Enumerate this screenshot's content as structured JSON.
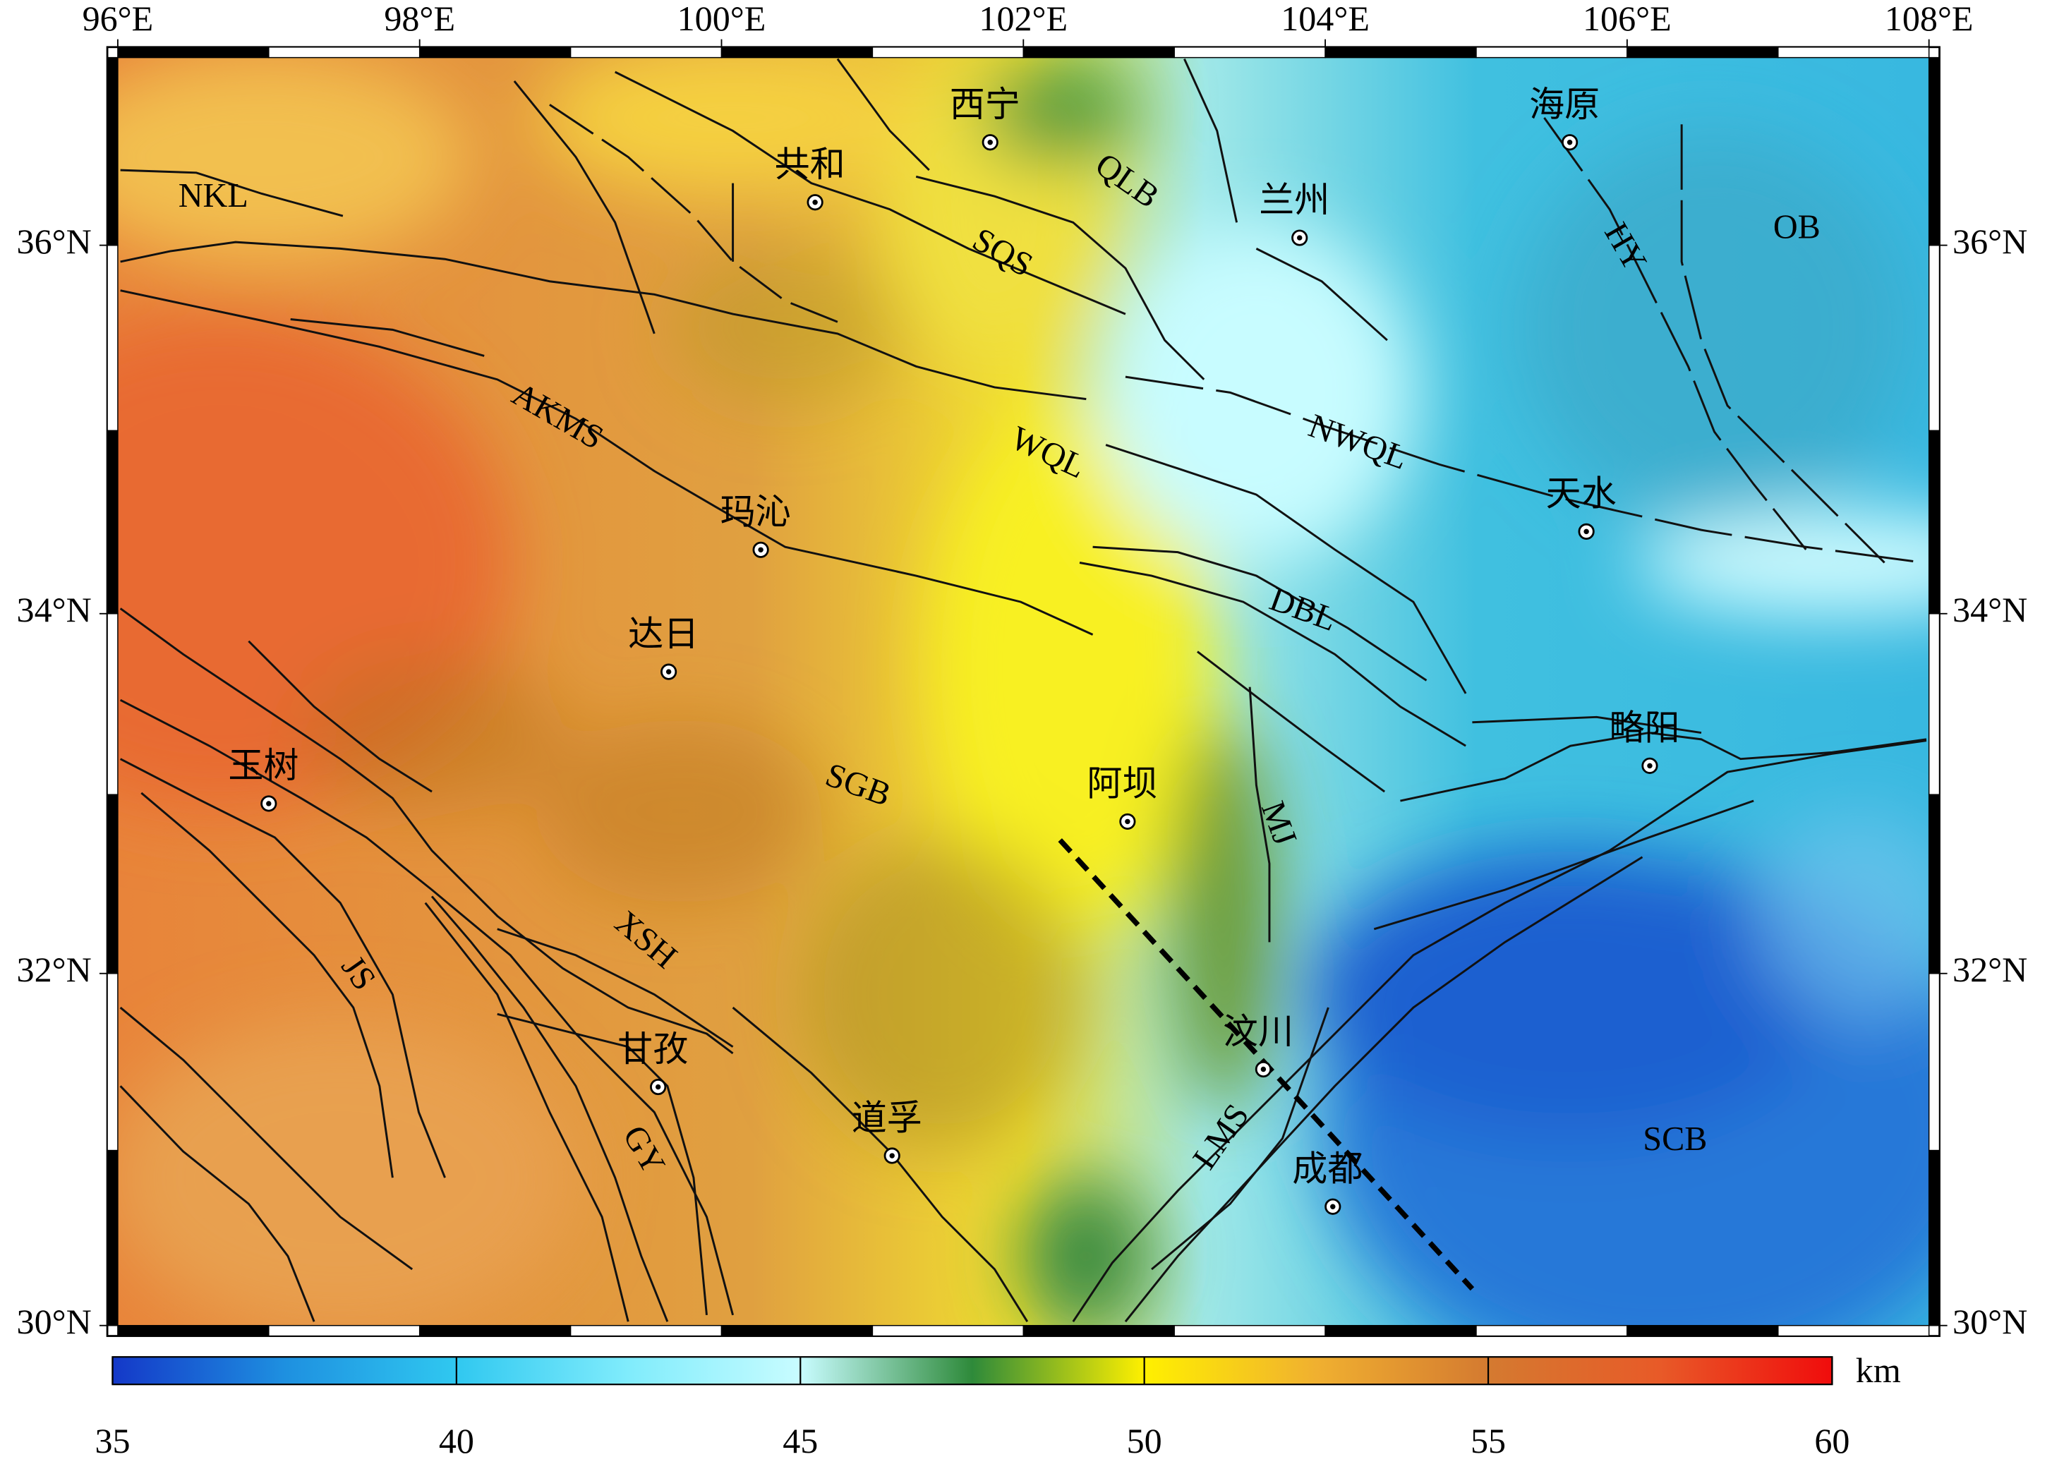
{
  "map": {
    "projection": "mercator",
    "lonlim": [
      96,
      108
    ],
    "latlim": [
      30,
      37
    ],
    "lonticks": [
      {
        "value": 96,
        "label": "96°E"
      },
      {
        "value": 98,
        "label": "98°E"
      },
      {
        "value": 100,
        "label": "100°E"
      },
      {
        "value": 102,
        "label": "102°E"
      },
      {
        "value": 104,
        "label": "104°E"
      },
      {
        "value": 106,
        "label": "106°E"
      },
      {
        "value": 108,
        "label": "108°E"
      }
    ],
    "latticks": [
      {
        "value": 30,
        "label": "30°N"
      },
      {
        "value": 32,
        "label": "32°N"
      },
      {
        "value": 34,
        "label": "34°N"
      },
      {
        "value": 36,
        "label": "36°N"
      }
    ],
    "cities": [
      {
        "name": "西宁",
        "lon": 101.78,
        "lat": 36.55
      },
      {
        "name": "共和",
        "lon": 100.62,
        "lat": 36.23
      },
      {
        "name": "兰州",
        "lon": 103.83,
        "lat": 36.04
      },
      {
        "name": "海原",
        "lon": 105.62,
        "lat": 36.55
      },
      {
        "name": "天水",
        "lon": 105.73,
        "lat": 34.45
      },
      {
        "name": "玛沁",
        "lon": 100.26,
        "lat": 34.35
      },
      {
        "name": "达日",
        "lon": 99.65,
        "lat": 33.68
      },
      {
        "name": "略阳",
        "lon": 106.15,
        "lat": 33.16
      },
      {
        "name": "玉树",
        "lon": 97.0,
        "lat": 32.95
      },
      {
        "name": "阿坝",
        "lon": 102.69,
        "lat": 32.85
      },
      {
        "name": "汶川",
        "lon": 103.59,
        "lat": 31.46
      },
      {
        "name": "甘孜",
        "lon": 99.58,
        "lat": 31.36
      },
      {
        "name": "道孚",
        "lon": 101.13,
        "lat": 30.97
      },
      {
        "name": "成都",
        "lon": 104.05,
        "lat": 30.68
      }
    ],
    "faults": [
      "NKL",
      "QLB",
      "SQS",
      "AKMS",
      "WQL",
      "NWQL",
      "HY",
      "OB",
      "DBL",
      "SGB",
      "MJ",
      "XSH",
      "JS",
      "GY",
      "LMS",
      "SCB"
    ],
    "colorbar": {
      "lim": [
        35,
        60
      ],
      "ticks": [
        35,
        40,
        45,
        50,
        55,
        60
      ],
      "unit": "km",
      "colors": [
        "#1438c8",
        "#1e90e0",
        "#30c8f0",
        "#80ecfc",
        "#c8fcff",
        "#2e8a3a",
        "#fff000",
        "#f0b030",
        "#d47a30",
        "#e85a28",
        "#f00c0c"
      ]
    }
  }
}
